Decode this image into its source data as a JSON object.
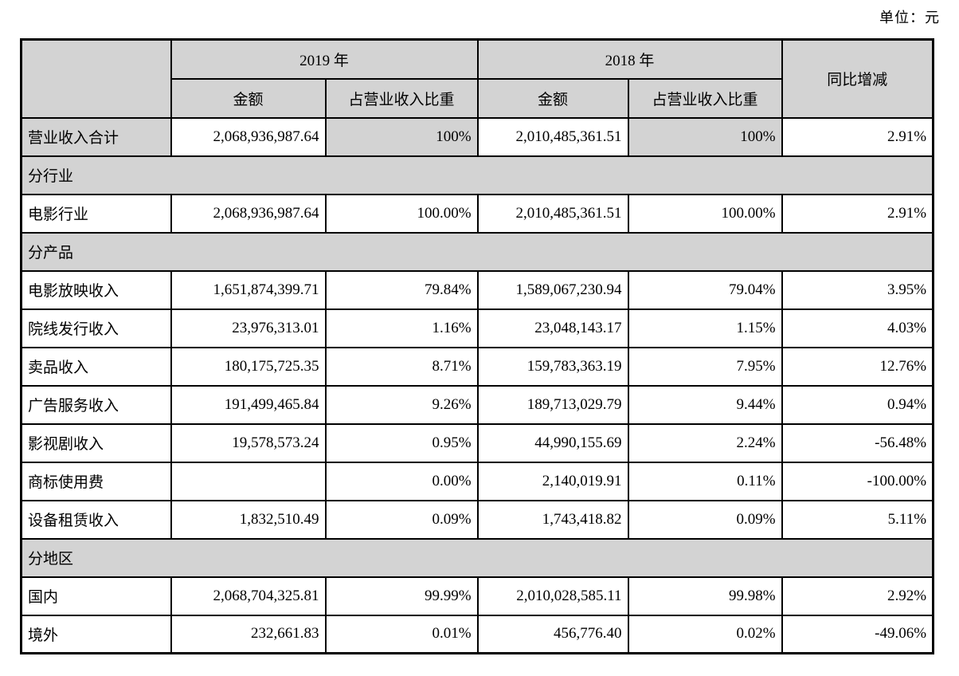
{
  "unit_label": "单位：元",
  "colors": {
    "shaded_bg": "#d3d3d3",
    "border": "#000000",
    "text": "#000000"
  },
  "header": {
    "y2019": "2019 年",
    "y2018": "2018 年",
    "amount": "金额",
    "ratio": "占营业收入比重",
    "yoy": "同比增减"
  },
  "rows": [
    {
      "type": "data",
      "variant": "summary",
      "label": "营业收入合计",
      "a2019": "2,068,936,987.64",
      "r2019": "100%",
      "a2018": "2,010,485,361.51",
      "r2018": "100%",
      "yoy": "2.91%"
    },
    {
      "type": "section",
      "label": "分行业"
    },
    {
      "type": "data",
      "label": "电影行业",
      "a2019": "2,068,936,987.64",
      "r2019": "100.00%",
      "a2018": "2,010,485,361.51",
      "r2018": "100.00%",
      "yoy": "2.91%"
    },
    {
      "type": "section",
      "label": "分产品"
    },
    {
      "type": "data",
      "label": "电影放映收入",
      "a2019": "1,651,874,399.71",
      "r2019": "79.84%",
      "a2018": "1,589,067,230.94",
      "r2018": "79.04%",
      "yoy": "3.95%"
    },
    {
      "type": "data",
      "label": "院线发行收入",
      "a2019": "23,976,313.01",
      "r2019": "1.16%",
      "a2018": "23,048,143.17",
      "r2018": "1.15%",
      "yoy": "4.03%"
    },
    {
      "type": "data",
      "label": "卖品收入",
      "a2019": "180,175,725.35",
      "r2019": "8.71%",
      "a2018": "159,783,363.19",
      "r2018": "7.95%",
      "yoy": "12.76%"
    },
    {
      "type": "data",
      "label": "广告服务收入",
      "a2019": "191,499,465.84",
      "r2019": "9.26%",
      "a2018": "189,713,029.79",
      "r2018": "9.44%",
      "yoy": "0.94%"
    },
    {
      "type": "data",
      "label": "影视剧收入",
      "a2019": "19,578,573.24",
      "r2019": "0.95%",
      "a2018": "44,990,155.69",
      "r2018": "2.24%",
      "yoy": "-56.48%"
    },
    {
      "type": "data",
      "label": "商标使用费",
      "a2019": "",
      "r2019": "0.00%",
      "a2018": "2,140,019.91",
      "r2018": "0.11%",
      "yoy": "-100.00%"
    },
    {
      "type": "data",
      "label": "设备租赁收入",
      "a2019": "1,832,510.49",
      "r2019": "0.09%",
      "a2018": "1,743,418.82",
      "r2018": "0.09%",
      "yoy": "5.11%"
    },
    {
      "type": "section",
      "label": "分地区"
    },
    {
      "type": "data",
      "label": "国内",
      "a2019": "2,068,704,325.81",
      "r2019": "99.99%",
      "a2018": "2,010,028,585.11",
      "r2018": "99.98%",
      "yoy": "2.92%"
    },
    {
      "type": "data",
      "label": "境外",
      "a2019": "232,661.83",
      "r2019": "0.01%",
      "a2018": "456,776.40",
      "r2018": "0.02%",
      "yoy": "-49.06%"
    }
  ]
}
